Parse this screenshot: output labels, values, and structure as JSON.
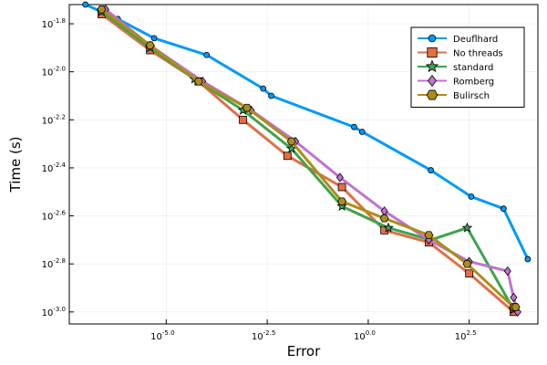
{
  "chart_data": {
    "type": "line",
    "xlabel": "Error",
    "ylabel": "Time (s)",
    "x_scale": "log10",
    "y_scale": "log10",
    "xlim": [
      -7.4,
      4.2
    ],
    "ylim": [
      -3.05,
      -1.72
    ],
    "x_ticks": [
      {
        "value": -5.0,
        "base": "10",
        "exp": "-5.0"
      },
      {
        "value": -2.5,
        "base": "10",
        "exp": "-2.5"
      },
      {
        "value": 0.0,
        "base": "10",
        "exp": "0.0"
      },
      {
        "value": 2.5,
        "base": "10",
        "exp": "2.5"
      }
    ],
    "y_ticks": [
      {
        "value": -3.0,
        "base": "10",
        "exp": "-3.0"
      },
      {
        "value": -2.8,
        "base": "10",
        "exp": "-2.8"
      },
      {
        "value": -2.6,
        "base": "10",
        "exp": "-2.6"
      },
      {
        "value": -2.4,
        "base": "10",
        "exp": "-2.4"
      },
      {
        "value": -2.2,
        "base": "10",
        "exp": "-2.2"
      },
      {
        "value": -2.0,
        "base": "10",
        "exp": "-2.0"
      },
      {
        "value": -1.8,
        "base": "10",
        "exp": "-1.8"
      }
    ],
    "grid": true,
    "legend_position": "top-right",
    "series": [
      {
        "name": "Deuflhard",
        "color": "#009af9",
        "marker": "circle",
        "x": [
          -7.0,
          -6.2,
          -5.3,
          -4.0,
          -2.6,
          -2.4,
          -0.35,
          -0.15,
          1.55,
          2.55,
          3.35,
          3.95
        ],
        "y": [
          -1.72,
          -1.78,
          -1.86,
          -1.93,
          -2.07,
          -2.1,
          -2.23,
          -2.25,
          -2.41,
          -2.52,
          -2.57,
          -2.78
        ]
      },
      {
        "name": "No threads",
        "color": "#e26f46",
        "marker": "square",
        "x": [
          -6.6,
          -5.4,
          -4.2,
          -3.1,
          -2.0,
          -0.65,
          0.4,
          1.5,
          2.5,
          3.6
        ],
        "y": [
          -1.76,
          -1.91,
          -2.04,
          -2.2,
          -2.35,
          -2.48,
          -2.66,
          -2.71,
          -2.84,
          -3.0
        ]
      },
      {
        "name": "standard",
        "color": "#3da44d",
        "marker": "star",
        "x": [
          -6.6,
          -5.4,
          -4.3,
          -3.1,
          -1.9,
          -0.65,
          0.5,
          1.55,
          2.45,
          3.6
        ],
        "y": [
          -1.75,
          -1.9,
          -2.03,
          -2.16,
          -2.32,
          -2.56,
          -2.65,
          -2.7,
          -2.65,
          -2.99
        ]
      },
      {
        "name": "Romberg",
        "color": "#c271d2",
        "marker": "diamond",
        "x": [
          -6.5,
          -5.4,
          -4.1,
          -2.9,
          -1.8,
          -0.7,
          0.4,
          1.5,
          2.5,
          3.45,
          3.6,
          3.7
        ],
        "y": [
          -1.74,
          -1.89,
          -2.04,
          -2.16,
          -2.29,
          -2.44,
          -2.58,
          -2.7,
          -2.79,
          -2.83,
          -2.94,
          -3.0
        ]
      },
      {
        "name": "Bulirsch",
        "color": "#ac8d18",
        "marker": "hexagon",
        "x": [
          -6.6,
          -5.4,
          -4.2,
          -3.0,
          -1.9,
          -0.65,
          0.4,
          1.5,
          2.45,
          3.6,
          3.65
        ],
        "y": [
          -1.74,
          -1.89,
          -2.04,
          -2.15,
          -2.29,
          -2.54,
          -2.61,
          -2.68,
          -2.8,
          -2.98,
          -2.98
        ]
      }
    ]
  }
}
